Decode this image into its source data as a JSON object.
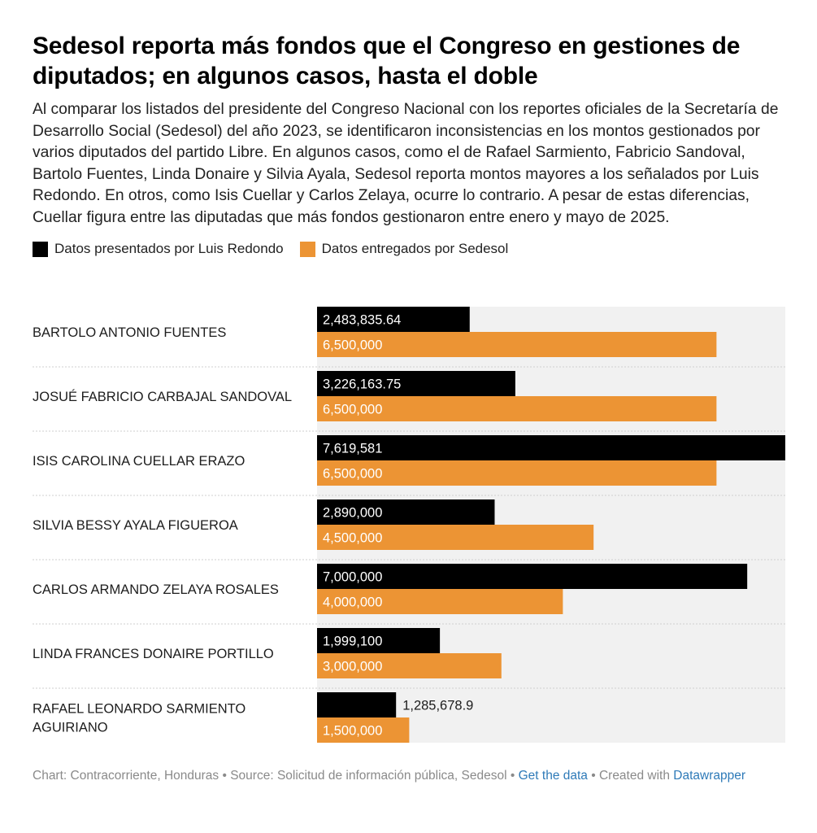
{
  "header": {
    "title": "Sedesol reporta más fondos que el Congreso en gestiones de diputados; en algunos casos, hasta el doble",
    "description": "Al comparar los listados del presidente del Congreso Nacional con los reportes oficiales de la Secretaría de Desarrollo Social (Sedesol) del año 2023, se identificaron inconsistencias en los montos gestionados por varios diputados del partido Libre. En algunos casos, como el de Rafael Sarmiento, Fabricio Sandoval, Bartolo Fuentes, Linda Donaire y Silvia Ayala, Sedesol reporta montos mayores a los señalados por Luis Redondo. En otros, como Isis Cuellar y Carlos Zelaya, ocurre lo contrario. A pesar de estas diferencias, Cuellar figura entre las diputadas que más fondos gestionaron entre enero y mayo de 2025."
  },
  "legend": [
    {
      "label": "Datos presentados por Luis Redondo",
      "color": "#000000"
    },
    {
      "label": "Datos entregados por Sedesol",
      "color": "#ec9434"
    }
  ],
  "chart_data": {
    "type": "bar",
    "orientation": "horizontal",
    "categories": [
      "BARTOLO ANTONIO FUENTES",
      "JOSUÉ FABRICIO CARBAJAL SANDOVAL",
      "ISIS CAROLINA CUELLAR ERAZO",
      "SILVIA BESSY AYALA FIGUEROA",
      "CARLOS ARMANDO ZELAYA ROSALES",
      "LINDA FRANCES DONAIRE PORTILLO",
      "RAFAEL LEONARDO SARMIENTO AGUIRIANO"
    ],
    "series": [
      {
        "name": "Datos presentados por Luis Redondo",
        "color": "#000000",
        "values": [
          2483835.64,
          3226163.75,
          7619581,
          2890000,
          7000000,
          1999100,
          1285678.9
        ],
        "labels": [
          "2,483,835.64",
          "3,226,163.75",
          "7,619,581",
          "2,890,000",
          "7,000,000",
          "1,999,100",
          "1,285,678.9"
        ]
      },
      {
        "name": "Datos entregados por Sedesol",
        "color": "#ec9434",
        "values": [
          6500000,
          6500000,
          6500000,
          4500000,
          4000000,
          3000000,
          1500000
        ],
        "labels": [
          "6,500,000",
          "6,500,000",
          "6,500,000",
          "4,500,000",
          "4,000,000",
          "3,000,000",
          "1,500,000"
        ]
      }
    ],
    "xlim": [
      0,
      7619581
    ],
    "legend_position": "top-left",
    "grid": false
  },
  "footer": {
    "chart_prefix": "Chart: ",
    "chart_credit": "Contracorriente, Honduras",
    "source_prefix": " • Source: ",
    "source": "Solicitud de información pública, Sedesol",
    "separator": " • ",
    "get_data_link": "Get the data",
    "created_with": " • Created with ",
    "datawrapper_link": "Datawrapper"
  }
}
